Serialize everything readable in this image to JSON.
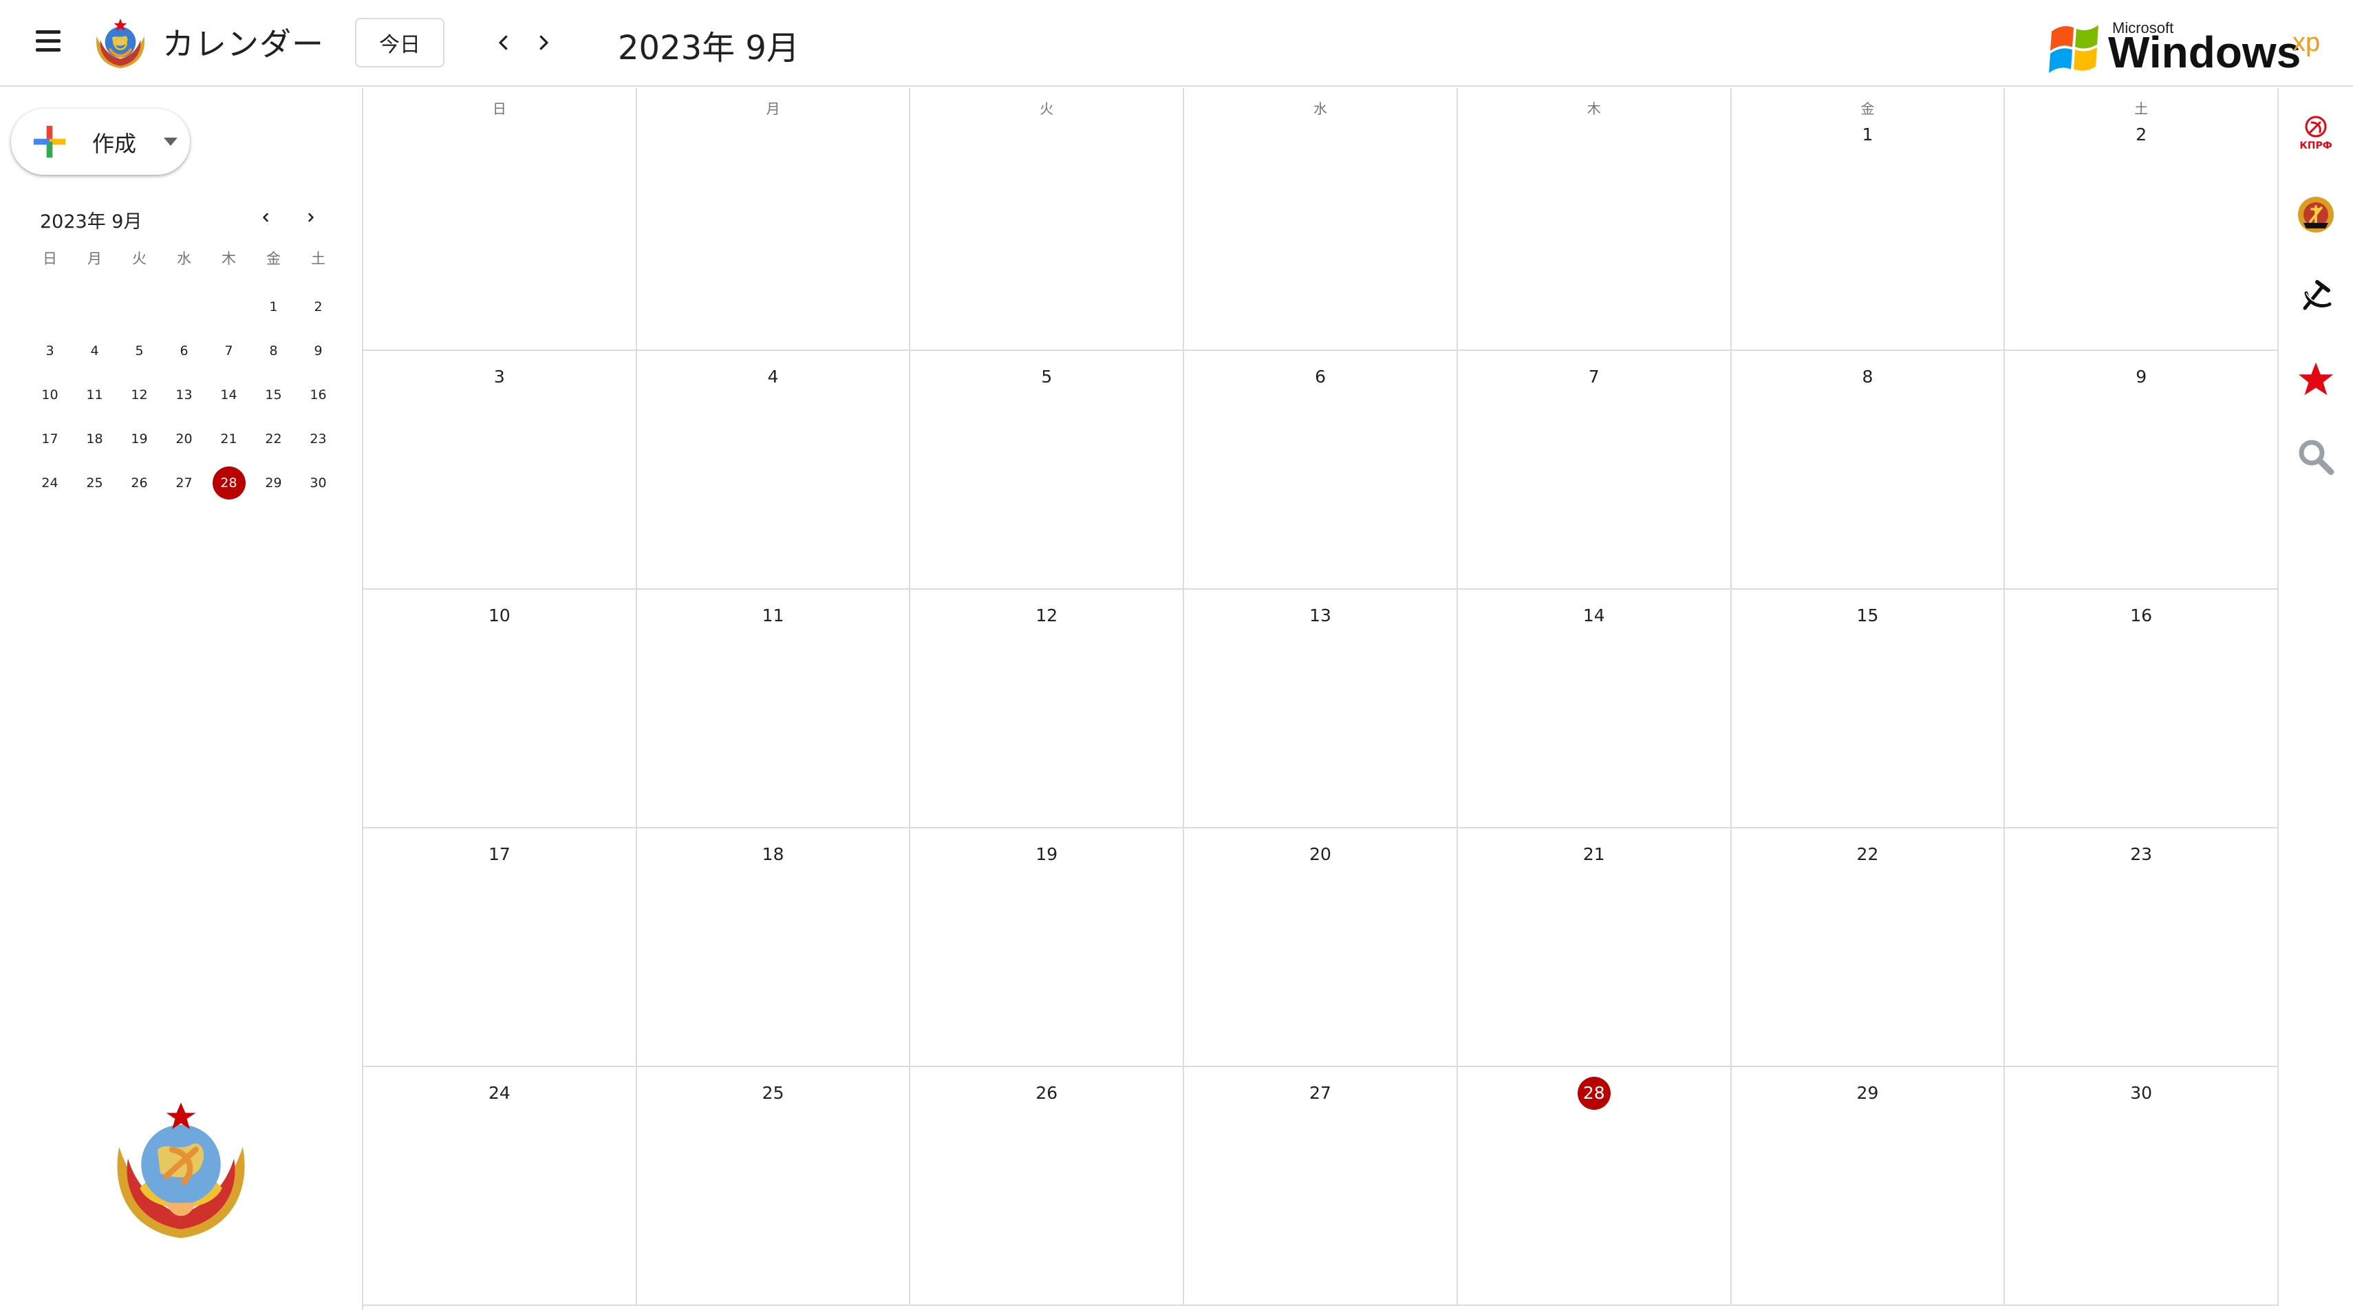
{
  "header": {
    "app_title": "カレンダー",
    "today_label": "今日",
    "month_title": "2023年 9月",
    "brand": {
      "microsoft": "Microsoft",
      "windows": "Windows",
      "xp": "xp"
    }
  },
  "sidebar": {
    "create_label": "作成",
    "mini_calendar": {
      "title": "2023年 9月",
      "weekdays": [
        "日",
        "月",
        "火",
        "水",
        "木",
        "金",
        "土"
      ],
      "weeks": [
        [
          "",
          "",
          "",
          "",
          "",
          "1",
          "2"
        ],
        [
          "3",
          "4",
          "5",
          "6",
          "7",
          "8",
          "9"
        ],
        [
          "10",
          "11",
          "12",
          "13",
          "14",
          "15",
          "16"
        ],
        [
          "17",
          "18",
          "19",
          "20",
          "21",
          "22",
          "23"
        ],
        [
          "24",
          "25",
          "26",
          "27",
          "28",
          "29",
          "30"
        ]
      ],
      "today": "28"
    }
  },
  "calendar": {
    "weekdays": [
      "日",
      "月",
      "火",
      "水",
      "木",
      "金",
      "土"
    ],
    "weeks": [
      [
        "",
        "",
        "",
        "",
        "",
        "1",
        "2"
      ],
      [
        "3",
        "4",
        "5",
        "6",
        "7",
        "8",
        "9"
      ],
      [
        "10",
        "11",
        "12",
        "13",
        "14",
        "15",
        "16"
      ],
      [
        "17",
        "18",
        "19",
        "20",
        "21",
        "22",
        "23"
      ],
      [
        "24",
        "25",
        "26",
        "27",
        "28",
        "29",
        "30"
      ]
    ],
    "today": "28"
  },
  "right_rail": {
    "items": [
      {
        "icon": "kprf-party-icon",
        "label": "КПРФ"
      },
      {
        "icon": "gdr-emblem-icon"
      },
      {
        "icon": "hammer-sickle-icon"
      },
      {
        "icon": "red-star-icon"
      },
      {
        "icon": "search-icon"
      }
    ]
  },
  "colors": {
    "today_red": "#b80000",
    "grid_border": "#dadce0",
    "text_primary": "#202124",
    "text_secondary": "#70757a"
  }
}
